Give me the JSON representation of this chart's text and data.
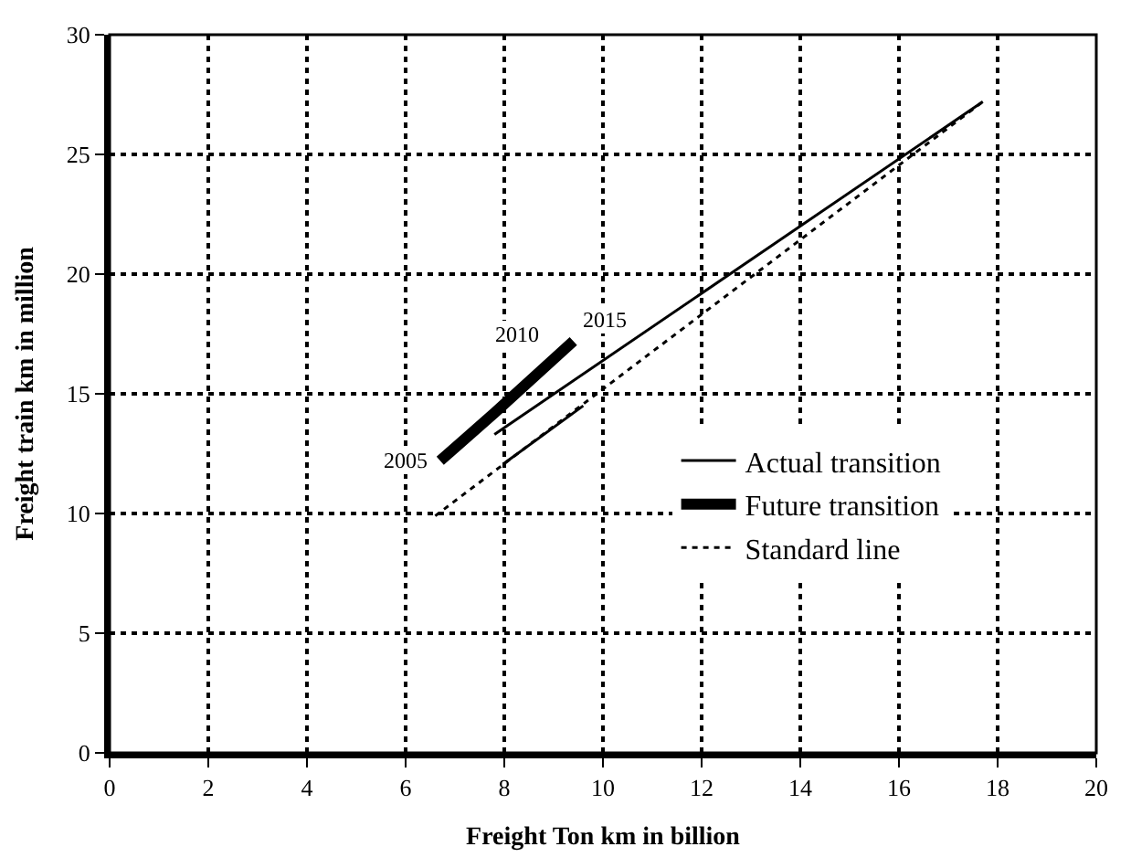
{
  "chart_data": {
    "type": "line",
    "xlabel": "Freight Ton km in billion",
    "ylabel": "Freight train km in million",
    "xlim": [
      0,
      20
    ],
    "xticks": [
      0,
      2,
      4,
      6,
      8,
      10,
      12,
      14,
      16,
      18,
      20
    ],
    "ylim": [
      0,
      30
    ],
    "yticks": [
      0,
      5,
      10,
      15,
      20,
      25,
      30
    ],
    "grid": true,
    "legend": "right",
    "marker": "none",
    "series": [
      {
        "name": "Actual transition",
        "color": "#000000",
        "line_style": "solid",
        "x": [
          7.8,
          17.7
        ],
        "values": [
          13.3,
          27.2
        ]
      },
      {
        "name": "Future transition",
        "color": "#000000",
        "line_style": "solid",
        "x": [
          6.7,
          7.8,
          9.4
        ],
        "values": [
          12.2,
          14.2,
          17.2
        ]
      },
      {
        "name": "Standard line",
        "color": "#000000",
        "line_style": "dotted",
        "x": [
          6.6,
          17.7
        ],
        "values": [
          9.9,
          27.2
        ]
      },
      {
        "color": "#000000",
        "line_style": "solid",
        "x": [
          8.0,
          9.6
        ],
        "values": [
          12.1,
          14.5
        ]
      }
    ],
    "annotations": [
      {
        "text": "2005",
        "x": 6.7,
        "y": 12.2
      },
      {
        "text": "2010",
        "x": 8.9,
        "y": 16.6
      },
      {
        "text": "2015",
        "x": 9.4,
        "y": 17.2
      }
    ]
  }
}
